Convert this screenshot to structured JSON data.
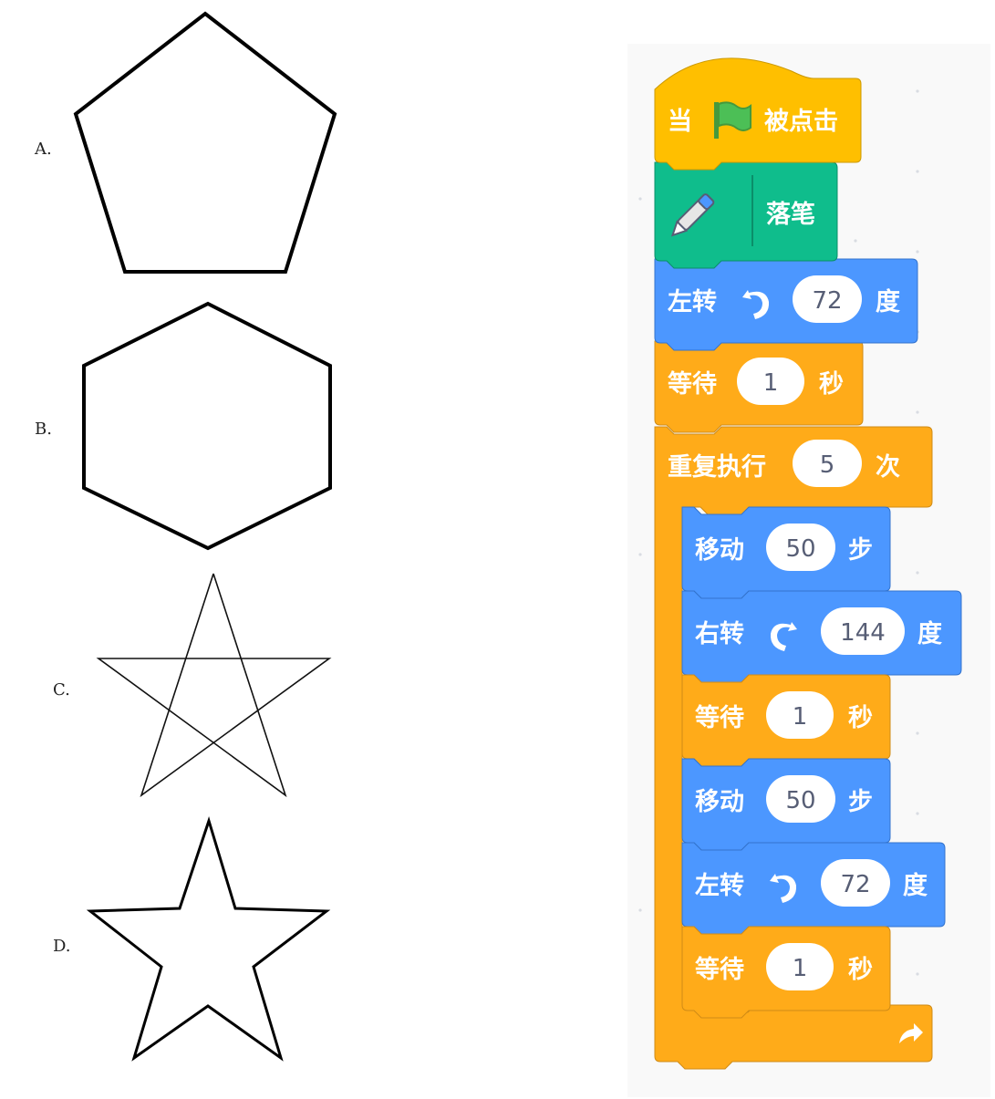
{
  "options": [
    {
      "label": "A.",
      "shape": "pentagon"
    },
    {
      "label": "B.",
      "shape": "hexagon"
    },
    {
      "label": "C.",
      "shape": "pentagram-lines"
    },
    {
      "label": "D.",
      "shape": "star-outline"
    }
  ],
  "colors": {
    "events": "#ffbf00",
    "pen": "#0fbd8c",
    "motion": "#4c97ff",
    "control": "#ffab19",
    "workspace": "#f9f9f9"
  },
  "script": {
    "when_flag": {
      "prefix": "当",
      "icon": "green-flag-icon",
      "suffix": "被点击"
    },
    "pen_down": {
      "icon": "pen-icon",
      "label": "落笔"
    },
    "turn_left_1": {
      "label": "左转",
      "icon": "rotate-left-icon",
      "value": "72",
      "unit": "度"
    },
    "wait_1": {
      "label": "等待",
      "value": "1",
      "unit": "秒"
    },
    "repeat": {
      "label": "重复执行",
      "value": "5",
      "unit": "次",
      "icon": "loop-arrow-icon"
    },
    "move_1": {
      "label": "移动",
      "value": "50",
      "unit": "步"
    },
    "turn_right": {
      "label": "右转",
      "icon": "rotate-right-icon",
      "value": "144",
      "unit": "度"
    },
    "wait_2": {
      "label": "等待",
      "value": "1",
      "unit": "秒"
    },
    "move_2": {
      "label": "移动",
      "value": "50",
      "unit": "步"
    },
    "turn_left_2": {
      "label": "左转",
      "icon": "rotate-left-icon",
      "value": "72",
      "unit": "度"
    },
    "wait_3": {
      "label": "等待",
      "value": "1",
      "unit": "秒"
    }
  }
}
